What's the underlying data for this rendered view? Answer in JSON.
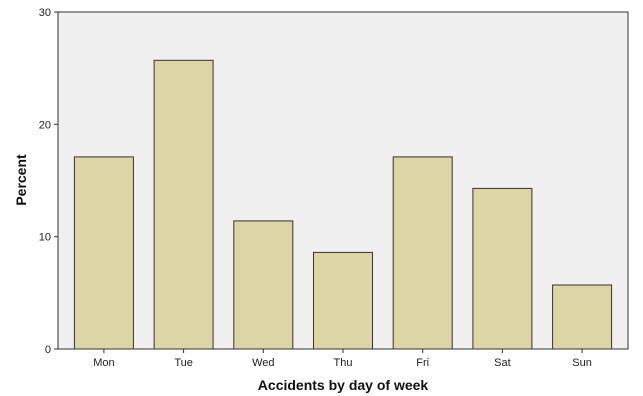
{
  "chart_data": {
    "type": "bar",
    "categories": [
      "Mon",
      "Tue",
      "Wed",
      "Thu",
      "Fri",
      "Sat",
      "Sun"
    ],
    "values": [
      17.1,
      25.7,
      11.4,
      8.6,
      17.1,
      14.3,
      5.7
    ],
    "title": "",
    "xlabel": "Accidents by day of week",
    "ylabel": "Percent",
    "ylim": [
      0,
      30
    ],
    "yticks": [
      0,
      10,
      20,
      30
    ],
    "grid": false,
    "legend": "none",
    "colors": {
      "plot_background": "#f0f0f0",
      "bar_fill": "#ddd5a6",
      "bar_stroke": "#333333",
      "frame": "#333333"
    }
  }
}
